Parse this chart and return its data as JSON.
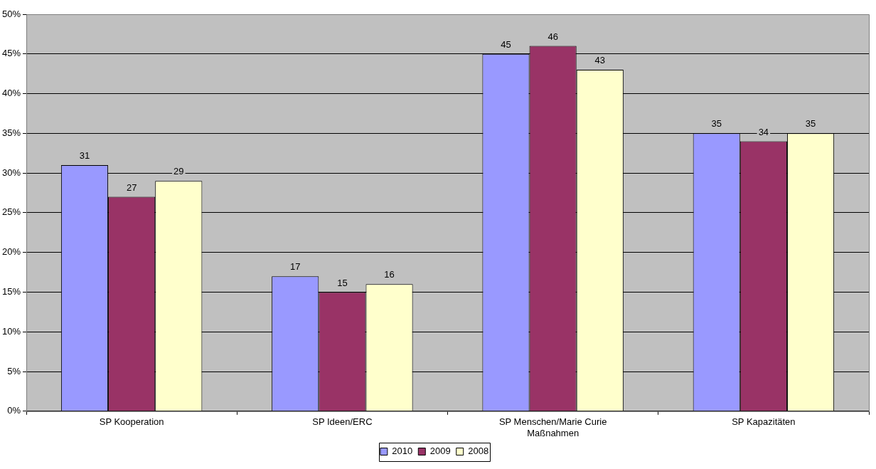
{
  "chart_data": {
    "type": "bar",
    "categories": [
      "SP Kooperation",
      "SP Ideen/ERC",
      "SP Menschen/Marie Curie Maßnahmen",
      "SP Kapazitäten"
    ],
    "series": [
      {
        "name": "2010",
        "color": "#9999ff",
        "values": [
          31,
          17,
          45,
          35
        ]
      },
      {
        "name": "2009",
        "color": "#993366",
        "values": [
          27,
          15,
          46,
          34
        ]
      },
      {
        "name": "2008",
        "color": "#ffffcc",
        "values": [
          29,
          16,
          43,
          35
        ]
      }
    ],
    "ylim": [
      0,
      50
    ],
    "yticks": [
      {
        "value": 0,
        "label": "0%"
      },
      {
        "value": 5,
        "label": "5%"
      },
      {
        "value": 10,
        "label": "10%"
      },
      {
        "value": 15,
        "label": "15%"
      },
      {
        "value": 20,
        "label": "20%"
      },
      {
        "value": 25,
        "label": "25%"
      },
      {
        "value": 30,
        "label": "30%"
      },
      {
        "value": 35,
        "label": "35%"
      },
      {
        "value": 40,
        "label": "40%"
      },
      {
        "value": 45,
        "label": "45%"
      },
      {
        "value": 50,
        "label": "50%"
      }
    ],
    "grid": "y",
    "legend": "bottom",
    "data_labels": true
  }
}
